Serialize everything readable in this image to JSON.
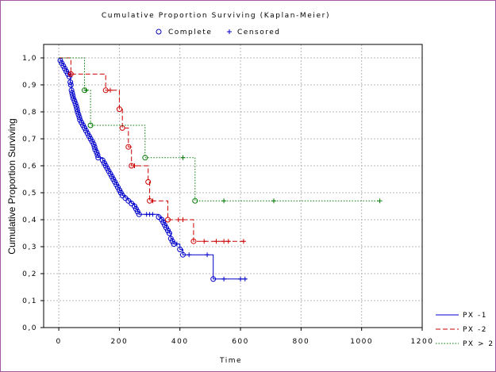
{
  "chart_data": {
    "type": "line",
    "title": "Cumulative Proportion Surviving (Kaplan-Meier)",
    "xlabel": "Time",
    "ylabel": "Cumulative Proportion Surviving",
    "xlim": [
      -50,
      1200
    ],
    "ylim": [
      0.0,
      1.05
    ],
    "x_tick_labels": [
      "0",
      "200",
      "400",
      "600",
      "800",
      "1000",
      "1200"
    ],
    "x_tick_values": [
      0,
      200,
      400,
      600,
      800,
      1000,
      1200
    ],
    "y_tick_labels": [
      "0,0",
      "0,1",
      "0,2",
      "0,3",
      "0,4",
      "0,5",
      "0,6",
      "0,7",
      "0,8",
      "0,9",
      "1,0"
    ],
    "y_tick_values": [
      0.0,
      0.1,
      0.2,
      0.3,
      0.4,
      0.5,
      0.6,
      0.7,
      0.8,
      0.9,
      1.0
    ],
    "grid": true,
    "top_legend": {
      "complete": "Complete",
      "censored": "Censored"
    },
    "series": [
      {
        "name": "PX -1",
        "color": "#0000cc",
        "dash": "solid",
        "steps": [
          [
            0,
            1.0
          ],
          [
            5,
            0.99
          ],
          [
            10,
            0.98
          ],
          [
            15,
            0.97
          ],
          [
            20,
            0.96
          ],
          [
            25,
            0.95
          ],
          [
            30,
            0.94
          ],
          [
            35,
            0.93
          ],
          [
            38,
            0.91
          ],
          [
            40,
            0.9
          ],
          [
            42,
            0.88
          ],
          [
            44,
            0.87
          ],
          [
            46,
            0.86
          ],
          [
            48,
            0.85
          ],
          [
            52,
            0.84
          ],
          [
            55,
            0.83
          ],
          [
            58,
            0.82
          ],
          [
            60,
            0.81
          ],
          [
            62,
            0.8
          ],
          [
            65,
            0.79
          ],
          [
            68,
            0.78
          ],
          [
            70,
            0.77
          ],
          [
            75,
            0.76
          ],
          [
            80,
            0.75
          ],
          [
            85,
            0.74
          ],
          [
            90,
            0.73
          ],
          [
            95,
            0.72
          ],
          [
            100,
            0.71
          ],
          [
            105,
            0.7
          ],
          [
            110,
            0.69
          ],
          [
            115,
            0.68
          ],
          [
            118,
            0.67
          ],
          [
            120,
            0.66
          ],
          [
            125,
            0.65
          ],
          [
            128,
            0.64
          ],
          [
            130,
            0.63
          ],
          [
            145,
            0.62
          ],
          [
            150,
            0.61
          ],
          [
            155,
            0.6
          ],
          [
            160,
            0.59
          ],
          [
            165,
            0.58
          ],
          [
            170,
            0.57
          ],
          [
            175,
            0.56
          ],
          [
            180,
            0.55
          ],
          [
            185,
            0.54
          ],
          [
            190,
            0.53
          ],
          [
            195,
            0.52
          ],
          [
            200,
            0.51
          ],
          [
            205,
            0.5
          ],
          [
            210,
            0.49
          ],
          [
            220,
            0.48
          ],
          [
            230,
            0.47
          ],
          [
            240,
            0.46
          ],
          [
            250,
            0.45
          ],
          [
            255,
            0.44
          ],
          [
            260,
            0.43
          ],
          [
            265,
            0.42
          ],
          [
            330,
            0.41
          ],
          [
            340,
            0.4
          ],
          [
            345,
            0.39
          ],
          [
            350,
            0.38
          ],
          [
            355,
            0.37
          ],
          [
            360,
            0.36
          ],
          [
            365,
            0.35
          ],
          [
            370,
            0.33
          ],
          [
            375,
            0.32
          ],
          [
            380,
            0.31
          ],
          [
            400,
            0.29
          ],
          [
            410,
            0.27
          ],
          [
            510,
            0.18
          ],
          [
            620,
            0.18
          ]
        ],
        "events": [
          [
            5,
            0.99
          ],
          [
            10,
            0.98
          ],
          [
            15,
            0.97
          ],
          [
            20,
            0.96
          ],
          [
            25,
            0.95
          ],
          [
            30,
            0.94
          ],
          [
            35,
            0.93
          ],
          [
            38,
            0.91
          ],
          [
            40,
            0.9
          ],
          [
            42,
            0.88
          ],
          [
            44,
            0.87
          ],
          [
            46,
            0.86
          ],
          [
            48,
            0.85
          ],
          [
            52,
            0.84
          ],
          [
            55,
            0.83
          ],
          [
            58,
            0.82
          ],
          [
            60,
            0.81
          ],
          [
            62,
            0.8
          ],
          [
            65,
            0.79
          ],
          [
            68,
            0.78
          ],
          [
            70,
            0.77
          ],
          [
            75,
            0.76
          ],
          [
            80,
            0.75
          ],
          [
            85,
            0.74
          ],
          [
            90,
            0.73
          ],
          [
            95,
            0.72
          ],
          [
            100,
            0.71
          ],
          [
            105,
            0.7
          ],
          [
            110,
            0.69
          ],
          [
            115,
            0.68
          ],
          [
            118,
            0.67
          ],
          [
            120,
            0.66
          ],
          [
            125,
            0.65
          ],
          [
            128,
            0.64
          ],
          [
            130,
            0.63
          ],
          [
            145,
            0.62
          ],
          [
            150,
            0.61
          ],
          [
            155,
            0.6
          ],
          [
            160,
            0.59
          ],
          [
            165,
            0.58
          ],
          [
            170,
            0.57
          ],
          [
            175,
            0.56
          ],
          [
            180,
            0.55
          ],
          [
            185,
            0.54
          ],
          [
            190,
            0.53
          ],
          [
            195,
            0.52
          ],
          [
            200,
            0.51
          ],
          [
            205,
            0.5
          ],
          [
            210,
            0.49
          ],
          [
            220,
            0.48
          ],
          [
            230,
            0.47
          ],
          [
            240,
            0.46
          ],
          [
            250,
            0.45
          ],
          [
            255,
            0.44
          ],
          [
            260,
            0.43
          ],
          [
            265,
            0.42
          ],
          [
            330,
            0.41
          ],
          [
            340,
            0.4
          ],
          [
            345,
            0.39
          ],
          [
            350,
            0.38
          ],
          [
            355,
            0.37
          ],
          [
            360,
            0.36
          ],
          [
            365,
            0.35
          ],
          [
            370,
            0.33
          ],
          [
            375,
            0.32
          ],
          [
            380,
            0.31
          ],
          [
            400,
            0.29
          ],
          [
            410,
            0.27
          ],
          [
            510,
            0.18
          ]
        ],
        "censored": [
          [
            290,
            0.42
          ],
          [
            300,
            0.42
          ],
          [
            310,
            0.42
          ],
          [
            390,
            0.31
          ],
          [
            430,
            0.27
          ],
          [
            490,
            0.27
          ],
          [
            545,
            0.18
          ],
          [
            600,
            0.18
          ],
          [
            615,
            0.18
          ]
        ]
      },
      {
        "name": "PX -2",
        "color": "#cc0000",
        "dash": "dashed",
        "steps": [
          [
            0,
            1.0
          ],
          [
            40,
            0.94
          ],
          [
            155,
            0.88
          ],
          [
            200,
            0.81
          ],
          [
            210,
            0.74
          ],
          [
            230,
            0.67
          ],
          [
            240,
            0.6
          ],
          [
            295,
            0.54
          ],
          [
            300,
            0.47
          ],
          [
            360,
            0.4
          ],
          [
            370,
            0.4
          ],
          [
            445,
            0.32
          ],
          [
            620,
            0.32
          ]
        ],
        "events": [
          [
            40,
            0.94
          ],
          [
            155,
            0.88
          ],
          [
            200,
            0.81
          ],
          [
            210,
            0.74
          ],
          [
            230,
            0.67
          ],
          [
            240,
            0.6
          ],
          [
            295,
            0.54
          ],
          [
            300,
            0.47
          ],
          [
            360,
            0.4
          ],
          [
            445,
            0.32
          ]
        ],
        "censored": [
          [
            40,
            0.94
          ],
          [
            170,
            0.88
          ],
          [
            250,
            0.6
          ],
          [
            310,
            0.47
          ],
          [
            395,
            0.4
          ],
          [
            410,
            0.4
          ],
          [
            480,
            0.32
          ],
          [
            520,
            0.32
          ],
          [
            545,
            0.32
          ],
          [
            560,
            0.32
          ],
          [
            610,
            0.32
          ]
        ]
      },
      {
        "name": "PX > 2",
        "color": "#007a00",
        "dash": "dotted",
        "steps": [
          [
            0,
            1.0
          ],
          [
            85,
            0.88
          ],
          [
            105,
            0.75
          ],
          [
            285,
            0.63
          ],
          [
            450,
            0.47
          ],
          [
            1060,
            0.47
          ]
        ],
        "events": [
          [
            85,
            0.88
          ],
          [
            105,
            0.75
          ],
          [
            285,
            0.63
          ],
          [
            450,
            0.47
          ]
        ],
        "censored": [
          [
            90,
            0.88
          ],
          [
            410,
            0.63
          ],
          [
            545,
            0.47
          ],
          [
            710,
            0.47
          ],
          [
            1060,
            0.47
          ]
        ]
      }
    ]
  }
}
